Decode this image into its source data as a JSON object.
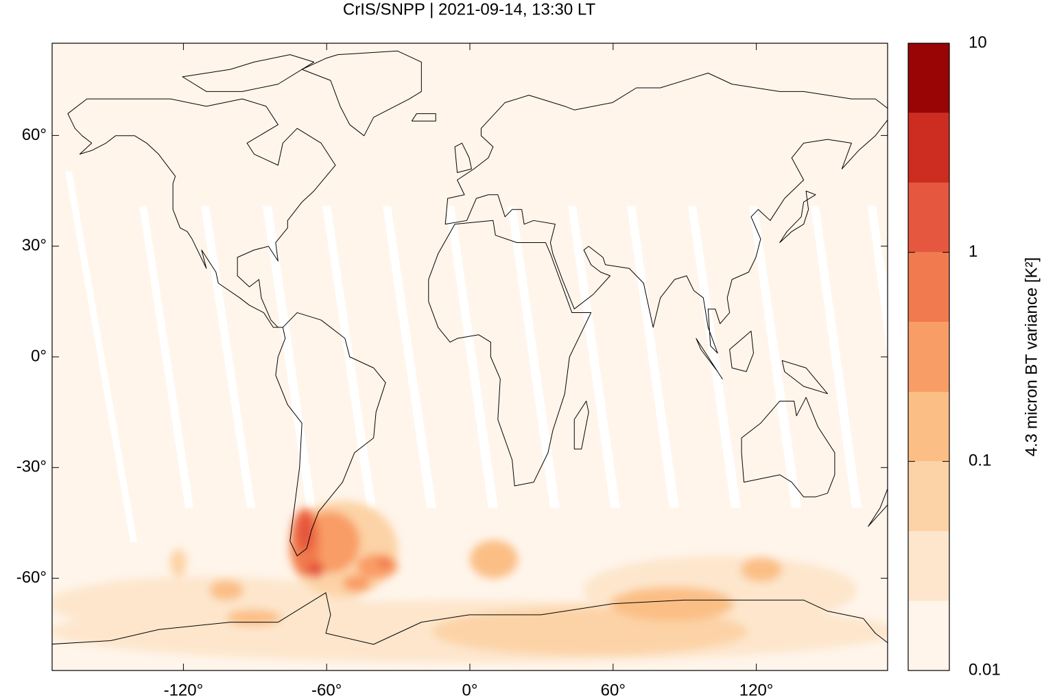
{
  "chart_data": {
    "type": "map",
    "title": "CrIS/SNPP | 2021-09-14, 13:30 LT",
    "xlim": [
      -175,
      175
    ],
    "ylim": [
      -85,
      85
    ],
    "xticks": [
      {
        "value": -120,
        "label": "-120°"
      },
      {
        "value": -60,
        "label": "-60°"
      },
      {
        "value": 0,
        "label": "0°"
      },
      {
        "value": 60,
        "label": "60°"
      },
      {
        "value": 120,
        "label": "120°"
      }
    ],
    "yticks": [
      {
        "value": 60,
        "label": "60°"
      },
      {
        "value": 30,
        "label": "30°"
      },
      {
        "value": 0,
        "label": "0°"
      },
      {
        "value": -30,
        "label": "-30°"
      },
      {
        "value": -60,
        "label": "-60°"
      }
    ],
    "colorbar": {
      "label": "4.3 micron BT variance [K²]",
      "scale": "log",
      "lim": [
        0.01,
        10
      ],
      "levels": [
        0.01,
        0.0215,
        0.0464,
        0.1,
        0.215,
        0.464,
        1,
        2.15,
        4.64,
        10
      ],
      "colors": [
        "#fff5eb",
        "#fde6cc",
        "#fcd3a6",
        "#fbbf86",
        "#f99d66",
        "#f17b4e",
        "#e5573e",
        "#cd2d20",
        "#990505"
      ],
      "ticks": [
        0.01,
        0.1,
        1,
        10
      ]
    }
  }
}
